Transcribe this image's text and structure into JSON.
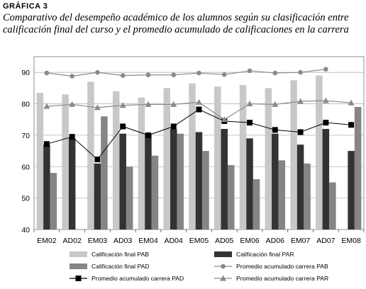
{
  "figure_label": "GRÁFICA 3",
  "title_line1": "Comparativo del desempeño académico de los alumnos según su clasificación entre",
  "title_line2": "calificación final del curso y el promedio acumulado de calificaciones en la carrera",
  "chart_data": {
    "type": "bar",
    "categories": [
      "EM02",
      "AD02",
      "EM03",
      "AD03",
      "EM04",
      "AD04",
      "EM05",
      "AD05",
      "EM06",
      "AD06",
      "EM07",
      "AD07",
      "EM08"
    ],
    "ylim": [
      40,
      95
    ],
    "yticks": [
      40,
      50,
      60,
      70,
      80,
      90
    ],
    "grid": true,
    "legend_position": "bottom",
    "series": [
      {
        "name": "Calificación final PAB",
        "kind": "bar",
        "color": "#c8c8c8",
        "values": [
          83.5,
          83,
          87,
          84,
          82,
          85,
          86.5,
          85.5,
          86,
          85,
          87.5,
          89,
          null
        ]
      },
      {
        "name": "Calificación final PAR",
        "kind": "bar",
        "color": "#333333",
        "values": [
          67,
          69,
          61,
          70.5,
          70.5,
          72,
          71,
          72,
          69,
          70.5,
          67,
          72,
          65
        ]
      },
      {
        "name": "Calificación final PAD",
        "kind": "bar",
        "color": "#858585",
        "values": [
          58,
          null,
          76,
          60,
          63.5,
          70.5,
          65,
          60.5,
          56,
          62,
          61,
          55,
          79
        ]
      },
      {
        "name": "Promedio acumulado carrera PAB",
        "kind": "line",
        "marker": "circle",
        "color": "#8a8a8a",
        "values": [
          89.8,
          88.8,
          90,
          89,
          89.2,
          89.2,
          89.8,
          89.3,
          90.5,
          89.8,
          90,
          91,
          null
        ]
      },
      {
        "name": "Promedio acumulado carrera PAD",
        "kind": "line",
        "marker": "square",
        "color": "#000000",
        "values": [
          67.2,
          69.5,
          62.3,
          72.8,
          70,
          72.8,
          78.2,
          74.5,
          74,
          71.7,
          71,
          74,
          73.3
        ]
      },
      {
        "name": "Promedio acumulado carrera PAR",
        "kind": "line",
        "marker": "triangle",
        "color": "#8a8a8a",
        "values": [
          79.2,
          79.8,
          78.8,
          79.5,
          79.8,
          79.8,
          80.5,
          75,
          80,
          79.8,
          80.8,
          81,
          80.3
        ]
      }
    ]
  }
}
